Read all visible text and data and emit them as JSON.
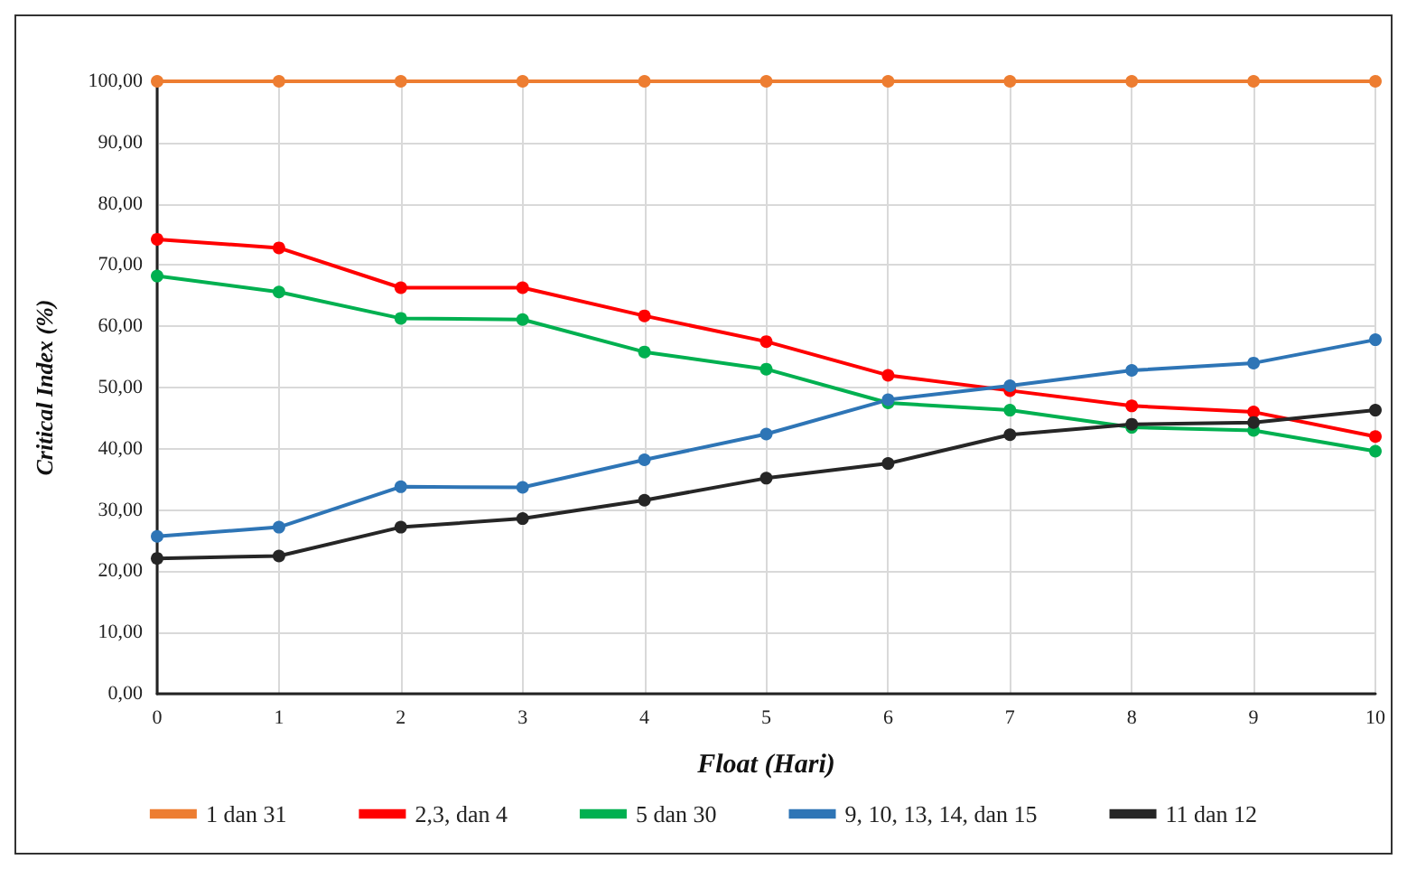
{
  "chart_data": {
    "type": "line",
    "xlabel": "Float (Hari)",
    "ylabel": "Critical Index (%)",
    "x": [
      0,
      1,
      2,
      3,
      4,
      5,
      6,
      7,
      8,
      9,
      10
    ],
    "series": [
      {
        "name": "1 dan 31",
        "color": "#ed7d31",
        "values": [
          100,
          100,
          100,
          100,
          100,
          100,
          100,
          100,
          100,
          100,
          100
        ]
      },
      {
        "name": "2,3, dan 4",
        "color": "#ff0000",
        "values": [
          74.2,
          72.8,
          66.3,
          66.3,
          61.7,
          57.5,
          52.0,
          49.5,
          47.0,
          46.0,
          42.0
        ]
      },
      {
        "name": "5 dan 30",
        "color": "#00b050",
        "values": [
          68.2,
          65.6,
          61.3,
          61.1,
          55.8,
          53.0,
          47.5,
          46.3,
          43.5,
          43.0,
          39.6
        ]
      },
      {
        "name": "9, 10, 13, 14, dan 15",
        "color": "#2e75b6",
        "values": [
          25.7,
          27.2,
          33.8,
          33.7,
          38.2,
          42.4,
          48.0,
          50.3,
          52.8,
          54.0,
          57.8
        ]
      },
      {
        "name": "11 dan 12",
        "color": "#262626",
        "values": [
          22.1,
          22.5,
          27.2,
          28.6,
          31.6,
          35.2,
          37.6,
          42.3,
          44.0,
          44.3,
          46.3
        ]
      }
    ],
    "xlim": [
      0,
      10
    ],
    "xticks": [
      0,
      1,
      2,
      3,
      4,
      5,
      6,
      7,
      8,
      9,
      10
    ],
    "ylim": [
      0,
      100
    ],
    "yticks": [
      {
        "value": 0,
        "label": "0,00"
      },
      {
        "value": 10,
        "label": "10,00"
      },
      {
        "value": 20,
        "label": "20,00"
      },
      {
        "value": 30,
        "label": "30,00"
      },
      {
        "value": 40,
        "label": "40,00"
      },
      {
        "value": 50,
        "label": "50,00"
      },
      {
        "value": 60,
        "label": "60,00"
      },
      {
        "value": 70,
        "label": "70,00"
      },
      {
        "value": 80,
        "label": "80,00"
      },
      {
        "value": 90,
        "label": "90,00"
      },
      {
        "value": 100,
        "label": "100,00"
      }
    ],
    "grid": true,
    "legend": "bottom",
    "marker": "circle",
    "line_style": "solid"
  }
}
